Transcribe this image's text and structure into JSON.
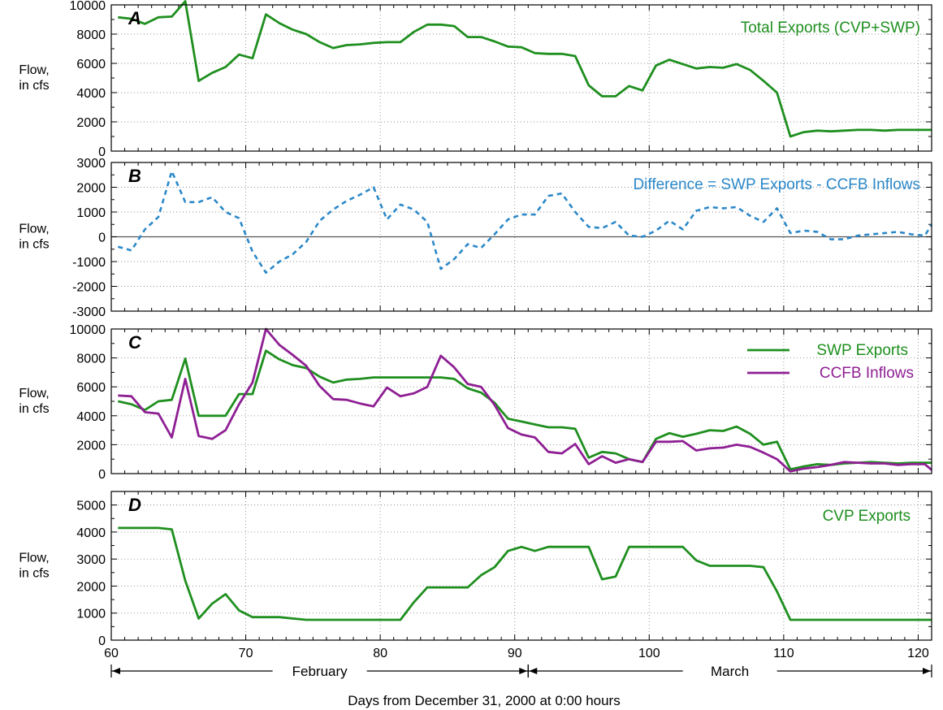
{
  "colors": {
    "green": "#1f8f1f",
    "purple": "#8e1f93",
    "blue": "#2b88c8"
  },
  "figure": {
    "ylabel_line1": "Flow,",
    "ylabel_line2": "in cfs",
    "xlabel": "Days from December 31, 2000 at 0:00 hours",
    "months": [
      {
        "name": "February",
        "start": 60,
        "end": 91
      },
      {
        "name": "March",
        "start": 91,
        "end": 121
      }
    ]
  },
  "chart_data": [
    {
      "type": "line",
      "panel": "A",
      "xlim": [
        60,
        121
      ],
      "ylim": [
        0,
        10000
      ],
      "yticks": [
        0,
        2000,
        4000,
        6000,
        8000,
        10000
      ],
      "xticks": [
        60,
        70,
        80,
        90,
        100,
        110,
        120
      ],
      "zero_line": false,
      "series": [
        {
          "name": "Total Exports (CVP+SWP)",
          "color": "green",
          "dashed": false,
          "x": [
            60.5,
            61.5,
            62.5,
            63.5,
            64.5,
            65.5,
            66.5,
            67.5,
            68.5,
            69.5,
            70.5,
            71.5,
            72.5,
            73.5,
            74.5,
            75.5,
            76.5,
            77.5,
            78.5,
            79.5,
            80.5,
            81.5,
            82.5,
            83.5,
            84.5,
            85.5,
            86.5,
            87.5,
            88.5,
            89.5,
            90.5,
            91.5,
            92.5,
            93.5,
            94.5,
            95.5,
            96.5,
            97.5,
            98.5,
            99.5,
            100.5,
            101.5,
            102.5,
            103.5,
            104.5,
            105.5,
            106.5,
            107.5,
            108.5,
            109.5,
            110.5,
            111.5,
            112.5,
            113.5,
            114.5,
            115.5,
            116.5,
            117.5,
            118.5,
            119.5,
            120.5,
            121
          ],
          "y": [
            9150,
            9050,
            8700,
            9150,
            9200,
            10250,
            4800,
            5350,
            5750,
            6600,
            6350,
            9350,
            8750,
            8300,
            8000,
            7450,
            7050,
            7250,
            7300,
            7400,
            7450,
            7450,
            8150,
            8650,
            8650,
            8550,
            7800,
            7800,
            7500,
            7150,
            7100,
            6700,
            6650,
            6650,
            6500,
            4500,
            3750,
            3750,
            4450,
            4150,
            5850,
            6250,
            5950,
            5650,
            5750,
            5700,
            5950,
            5550,
            4800,
            4000,
            1000,
            1300,
            1400,
            1350,
            1400,
            1450,
            1450,
            1400,
            1450,
            1450,
            1450,
            1450
          ]
        }
      ]
    },
    {
      "type": "line",
      "panel": "B",
      "xlim": [
        60,
        121
      ],
      "ylim": [
        -3000,
        3000
      ],
      "yticks": [
        -3000,
        -2000,
        -1000,
        0,
        1000,
        2000,
        3000
      ],
      "xticks": [
        60,
        70,
        80,
        90,
        100,
        110,
        120
      ],
      "zero_line": true,
      "series": [
        {
          "name": "Difference = SWP Exports - CCFB Inflows",
          "color": "blue",
          "dashed": true,
          "x": [
            60.5,
            61.5,
            62.5,
            63.5,
            64.5,
            65.5,
            66.5,
            67.5,
            68.5,
            69.5,
            70.5,
            71.5,
            72.5,
            73.5,
            74.5,
            75.5,
            76.5,
            77.5,
            78.5,
            79.5,
            80.5,
            81.5,
            82.5,
            83.5,
            84.5,
            85.5,
            86.5,
            87.5,
            88.5,
            89.5,
            90.5,
            91.5,
            92.5,
            93.5,
            94.5,
            95.5,
            96.5,
            97.5,
            98.5,
            99.5,
            100.5,
            101.5,
            102.5,
            103.5,
            104.5,
            105.5,
            106.5,
            107.5,
            108.5,
            109.5,
            110.5,
            111.5,
            112.5,
            113.5,
            114.5,
            115.5,
            116.5,
            117.5,
            118.5,
            119.5,
            120.5,
            121
          ],
          "y": [
            -400,
            -550,
            300,
            800,
            2650,
            1400,
            1400,
            1600,
            1000,
            750,
            -600,
            -1450,
            -1000,
            -700,
            -200,
            650,
            1100,
            1450,
            1700,
            2000,
            700,
            1300,
            1100,
            600,
            -1300,
            -900,
            -300,
            -450,
            100,
            700,
            900,
            900,
            1650,
            1750,
            1000,
            400,
            350,
            600,
            50,
            0,
            250,
            650,
            300,
            1050,
            1200,
            1150,
            1200,
            850,
            600,
            1150,
            150,
            250,
            200,
            -100,
            -100,
            50,
            100,
            150,
            200,
            100,
            50,
            500
          ]
        }
      ]
    },
    {
      "type": "line",
      "panel": "C",
      "xlim": [
        60,
        121
      ],
      "ylim": [
        0,
        10000
      ],
      "yticks": [
        0,
        2000,
        4000,
        6000,
        8000,
        10000
      ],
      "xticks": [
        60,
        70,
        80,
        90,
        100,
        110,
        120
      ],
      "zero_line": false,
      "series": [
        {
          "name": "SWP Exports",
          "color": "green",
          "dashed": false,
          "x": [
            60.5,
            61.5,
            62.5,
            63.5,
            64.5,
            65.5,
            66.5,
            67.5,
            68.5,
            69.5,
            70.5,
            71.5,
            72.5,
            73.5,
            74.5,
            75.5,
            76.5,
            77.5,
            78.5,
            79.5,
            80.5,
            81.5,
            82.5,
            83.5,
            84.5,
            85.5,
            86.5,
            87.5,
            88.5,
            89.5,
            90.5,
            91.5,
            92.5,
            93.5,
            94.5,
            95.5,
            96.5,
            97.5,
            98.5,
            99.5,
            100.5,
            101.5,
            102.5,
            103.5,
            104.5,
            105.5,
            106.5,
            107.5,
            108.5,
            109.5,
            110.5,
            111.5,
            112.5,
            113.5,
            114.5,
            115.5,
            116.5,
            117.5,
            118.5,
            119.5,
            120.5,
            121
          ],
          "y": [
            5000,
            4800,
            4400,
            5000,
            5100,
            7950,
            4000,
            4000,
            4000,
            5500,
            5500,
            8500,
            7900,
            7500,
            7300,
            6700,
            6300,
            6500,
            6550,
            6650,
            6650,
            6650,
            6650,
            6650,
            6650,
            6550,
            5900,
            5600,
            4900,
            3800,
            3600,
            3400,
            3200,
            3200,
            3100,
            1100,
            1500,
            1400,
            1000,
            800,
            2400,
            2800,
            2550,
            2750,
            3000,
            2950,
            3250,
            2750,
            2000,
            2200,
            300,
            500,
            650,
            600,
            700,
            750,
            800,
            750,
            700,
            750,
            750,
            750
          ]
        },
        {
          "name": "CCFB Inflows",
          "color": "purple",
          "dashed": false,
          "x": [
            60.5,
            61.5,
            62.5,
            63.5,
            64.5,
            65.5,
            66.5,
            67.5,
            68.5,
            69.5,
            70.5,
            71.5,
            72.5,
            73.5,
            74.5,
            75.5,
            76.5,
            77.5,
            78.5,
            79.5,
            80.5,
            81.5,
            82.5,
            83.5,
            84.5,
            85.5,
            86.5,
            87.5,
            88.5,
            89.5,
            90.5,
            91.5,
            92.5,
            93.5,
            94.5,
            95.5,
            96.5,
            97.5,
            98.5,
            99.5,
            100.5,
            101.5,
            102.5,
            103.5,
            104.5,
            105.5,
            106.5,
            107.5,
            108.5,
            109.5,
            110.5,
            111.5,
            112.5,
            113.5,
            114.5,
            115.5,
            116.5,
            117.5,
            118.5,
            119.5,
            120.5,
            121
          ],
          "y": [
            5400,
            5350,
            4250,
            4150,
            2500,
            6550,
            2600,
            2400,
            3000,
            4800,
            6300,
            10000,
            8900,
            8200,
            7450,
            6050,
            5150,
            5100,
            4850,
            4650,
            5950,
            5350,
            5550,
            6000,
            8150,
            7350,
            6200,
            6000,
            4750,
            3150,
            2700,
            2500,
            1500,
            1400,
            2050,
            650,
            1200,
            750,
            1000,
            800,
            2200,
            2200,
            2250,
            1600,
            1750,
            1800,
            2000,
            1850,
            1450,
            1000,
            150,
            350,
            450,
            600,
            800,
            750,
            700,
            700,
            600,
            650,
            650,
            250
          ]
        }
      ]
    },
    {
      "type": "line",
      "panel": "D",
      "xlim": [
        60,
        121
      ],
      "ylim": [
        0,
        5500
      ],
      "yticks": [
        0,
        1000,
        2000,
        3000,
        4000,
        5000
      ],
      "xticks": [
        60,
        70,
        80,
        90,
        100,
        110,
        120
      ],
      "zero_line": false,
      "series": [
        {
          "name": "CVP Exports",
          "color": "green",
          "dashed": false,
          "x": [
            60.5,
            61.5,
            62.5,
            63.5,
            64.5,
            65.5,
            66.5,
            67.5,
            68.5,
            69.5,
            70.5,
            71.5,
            72.5,
            73.5,
            74.5,
            75.5,
            76.5,
            77.5,
            78.5,
            79.5,
            80.5,
            81.5,
            82.5,
            83.5,
            84.5,
            85.5,
            86.5,
            87.5,
            88.5,
            89.5,
            90.5,
            91.5,
            92.5,
            93.5,
            94.5,
            95.5,
            96.5,
            97.5,
            98.5,
            99.5,
            100.5,
            101.5,
            102.5,
            103.5,
            104.5,
            105.5,
            106.5,
            107.5,
            108.5,
            109.5,
            110.5,
            111.5,
            112.5,
            113.5,
            114.5,
            115.5,
            116.5,
            117.5,
            118.5,
            119.5,
            120.5,
            121
          ],
          "y": [
            4150,
            4150,
            4150,
            4150,
            4100,
            2200,
            800,
            1350,
            1700,
            1100,
            850,
            850,
            850,
            800,
            750,
            750,
            750,
            750,
            750,
            750,
            750,
            750,
            1400,
            1950,
            1950,
            1950,
            1950,
            2400,
            2700,
            3300,
            3450,
            3300,
            3450,
            3450,
            3450,
            3450,
            2250,
            2350,
            3450,
            3450,
            3450,
            3450,
            3450,
            2950,
            2750,
            2750,
            2750,
            2750,
            2700,
            1800,
            750,
            750,
            750,
            750,
            750,
            750,
            750,
            750,
            750,
            750,
            750,
            750
          ]
        }
      ]
    }
  ],
  "panels": [
    {
      "letter": "A",
      "legend": [
        "Total Exports (CVP+SWP)"
      ],
      "tick_labels": [
        "10000",
        "8000",
        "6000",
        "4000",
        "2000",
        "0"
      ]
    },
    {
      "letter": "B",
      "legend": [
        "Difference = SWP Exports - CCFB Inflows"
      ],
      "tick_labels": [
        "3000",
        "2000",
        "1000",
        "0",
        "-1000",
        "-2000",
        "-3000"
      ]
    },
    {
      "letter": "C",
      "legend": [
        "SWP Exports",
        "CCFB Inflows"
      ],
      "tick_labels": [
        "10000",
        "8000",
        "6000",
        "4000",
        "2000",
        "0"
      ]
    },
    {
      "letter": "D",
      "legend": [
        "CVP Exports"
      ],
      "tick_labels": [
        "5000",
        "4000",
        "3000",
        "2000",
        "1000",
        "0"
      ]
    }
  ],
  "x_tick_labels": [
    "60",
    "70",
    "80",
    "90",
    "100",
    "110",
    "120"
  ]
}
